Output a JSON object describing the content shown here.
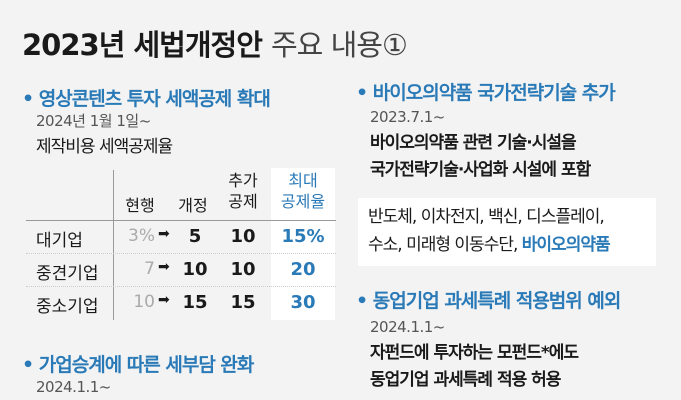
{
  "title": {
    "bold": "2023년 세법개정안",
    "light": "주요 내용①"
  },
  "left": {
    "heading": "영상콘텐츠 투자 세액공제 확대",
    "date": "2024년 1월 1일~",
    "label": "제작비용 세액공제율",
    "table": {
      "headers": [
        "현행",
        "개정",
        "추가\n공제",
        "최대\n공제율"
      ],
      "rows": [
        {
          "name": "대기업",
          "current": "3%",
          "revised": "5",
          "extra": "10",
          "max": "15%"
        },
        {
          "name": "중견기업",
          "current": "7",
          "revised": "10",
          "extra": "10",
          "max": "20"
        },
        {
          "name": "중소기업",
          "current": "10",
          "revised": "15",
          "extra": "15",
          "max": "30"
        }
      ],
      "arrow": "➡"
    },
    "heading2": "가업승계에 따른 세부담 완화",
    "date2": "2024.1.1~"
  },
  "right": {
    "heading": "바이오의약품 국가전략기술 추가",
    "date": "2023.7.1~",
    "body": [
      "바이오의약품 관련 기술·시설을",
      "국가전략기술·사업화 시설에 포함"
    ],
    "box": {
      "line1": "반도체, 이차전지, 백신, 디스플레이,",
      "line2": "수소, 미래형 이동수단, ",
      "highlight": "바이오의약품"
    },
    "heading2": "동업기업 과세특례 적용범위 예외",
    "date2": "2024.1.1~",
    "body2": [
      "자펀드에 투자하는 모펀드*에도",
      "동업기업 과세특례 적용 허용"
    ]
  },
  "bullet": "•",
  "colors": {
    "accent": "#2a7ab8",
    "background": "#f3f3f3"
  }
}
